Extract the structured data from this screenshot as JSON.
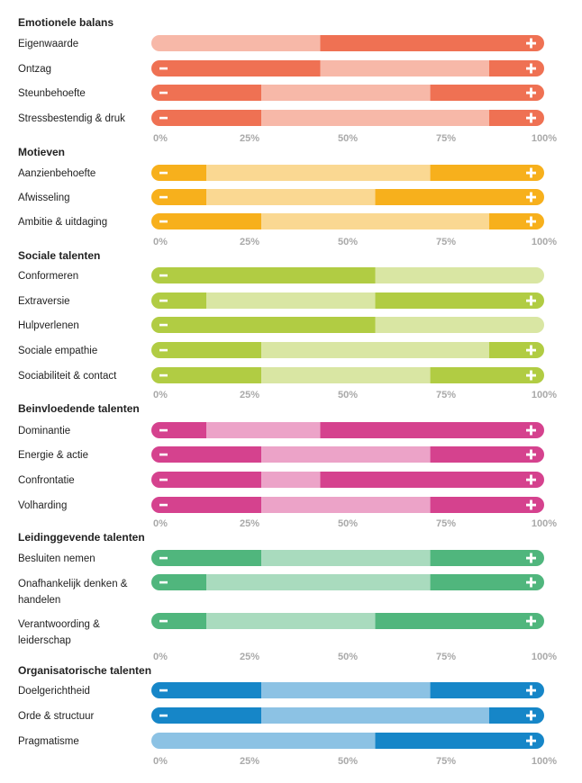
{
  "chart_data": {
    "type": "bar",
    "subtype": "range-profile",
    "xlim": [
      0,
      100
    ],
    "tick_labels": [
      "0%",
      "25%",
      "50%",
      "75%",
      "100%"
    ],
    "tick_values": [
      0,
      25,
      50,
      75,
      100
    ],
    "minus_symbol": "−",
    "plus_symbol": "+",
    "groups": [
      {
        "title": "Emotionele balans",
        "dark": "#ef7153",
        "light": "#f7b8a8",
        "rows": [
          {
            "label": "Eigenwaarde",
            "low": 0,
            "high": 43,
            "minus": false,
            "plus": true
          },
          {
            "label": "Ontzag",
            "low": 43,
            "high": 86,
            "minus": true,
            "plus": true
          },
          {
            "label": "Steunbehoefte",
            "low": 28,
            "high": 71,
            "minus": true,
            "plus": true
          },
          {
            "label": "Stressbestendig & druk",
            "low": 28,
            "high": 86,
            "minus": true,
            "plus": true
          }
        ]
      },
      {
        "title": "Motieven",
        "dark": "#f7b01c",
        "light": "#fad892",
        "rows": [
          {
            "label": "Aanzienbehoefte",
            "low": 14,
            "high": 71,
            "minus": true,
            "plus": true
          },
          {
            "label": "Afwisseling",
            "low": 14,
            "high": 57,
            "minus": true,
            "plus": true
          },
          {
            "label": "Ambitie & uitdaging",
            "low": 28,
            "high": 86,
            "minus": true,
            "plus": true
          }
        ]
      },
      {
        "title": "Sociale talenten",
        "dark": "#b1cc43",
        "light": "#d9e6a3",
        "rows": [
          {
            "label": "Conformeren",
            "low": 57,
            "high": 100,
            "minus": true,
            "plus": false
          },
          {
            "label": "Extraversie",
            "low": 14,
            "high": 57,
            "minus": true,
            "plus": true
          },
          {
            "label": "Hulpverlenen",
            "low": 57,
            "high": 100,
            "minus": true,
            "plus": false
          },
          {
            "label": "Sociale empathie",
            "low": 28,
            "high": 86,
            "minus": true,
            "plus": true
          },
          {
            "label": "Sociabiliteit & contact",
            "low": 28,
            "high": 71,
            "minus": true,
            "plus": true
          }
        ]
      },
      {
        "title": "Beinvloedende talenten",
        "dark": "#d5428e",
        "light": "#eca3c8",
        "rows": [
          {
            "label": "Dominantie",
            "low": 14,
            "high": 43,
            "minus": true,
            "plus": true
          },
          {
            "label": "Energie & actie",
            "low": 28,
            "high": 71,
            "minus": true,
            "plus": true
          },
          {
            "label": "Confrontatie",
            "low": 28,
            "high": 43,
            "minus": true,
            "plus": true
          },
          {
            "label": "Volharding",
            "low": 28,
            "high": 71,
            "minus": true,
            "plus": true
          }
        ]
      },
      {
        "title": "Leidinggevende talenten",
        "dark": "#50b67d",
        "light": "#a9dbbe",
        "rows": [
          {
            "label": "Besluiten nemen",
            "low": 28,
            "high": 71,
            "minus": true,
            "plus": true
          },
          {
            "label": "Onafhankelijk denken & handelen",
            "low": 14,
            "high": 71,
            "minus": true,
            "plus": true
          },
          {
            "label": "Verantwoording & leiderschap",
            "low": 14,
            "high": 57,
            "minus": true,
            "plus": true
          }
        ]
      },
      {
        "title": "Organisatorische talenten",
        "dark": "#1686c8",
        "light": "#8cc2e4",
        "rows": [
          {
            "label": "Doelgerichtheid",
            "low": 28,
            "high": 71,
            "minus": true,
            "plus": true
          },
          {
            "label": "Orde & structuur",
            "low": 28,
            "high": 86,
            "minus": true,
            "plus": true
          },
          {
            "label": "Pragmatisme",
            "low": 0,
            "high": 57,
            "minus": false,
            "plus": true
          }
        ]
      }
    ]
  }
}
